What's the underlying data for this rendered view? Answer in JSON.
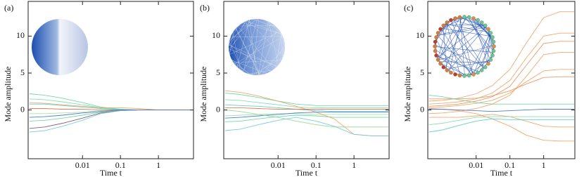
{
  "chart_data": [
    {
      "type": "line",
      "panel_label": "(a)",
      "ylabel": "Mode amplitude",
      "xlabel": "Time t",
      "xscale": "log",
      "xlim": [
        0.00037,
        8.4
      ],
      "ylim": [
        -6.6,
        14.7
      ],
      "xticks": [
        0.01,
        0.1,
        1
      ],
      "yticks": [
        0,
        5,
        10
      ],
      "x": [
        0.0004,
        0.001,
        0.003,
        0.01,
        0.03,
        0.1,
        0.3,
        1,
        3,
        8
      ],
      "series": [
        {
          "color": "#62d69e",
          "values": [
            2.2,
            2.0,
            1.6,
            1.0,
            0.4,
            0.1,
            0,
            0,
            0,
            0
          ]
        },
        {
          "color": "#7adcb0",
          "values": [
            1.5,
            1.4,
            1.1,
            0.7,
            0.3,
            0.05,
            0,
            0,
            0,
            0
          ]
        },
        {
          "color": "#57c9c0",
          "values": [
            0.8,
            0.8,
            0.6,
            0.4,
            0.2,
            0.03,
            0,
            0,
            0,
            0
          ]
        },
        {
          "color": "#9ee0a0",
          "values": [
            -0.5,
            -0.5,
            -0.4,
            -0.3,
            -0.1,
            0,
            0,
            0,
            0,
            0
          ]
        },
        {
          "color": "#62d69e",
          "values": [
            -1.5,
            -1.4,
            -1.1,
            -0.7,
            -0.3,
            -0.05,
            0,
            0,
            0,
            0
          ]
        },
        {
          "color": "#804a6a",
          "values": [
            -2.5,
            -2.3,
            -1.8,
            -1.1,
            -0.4,
            -0.1,
            0,
            0,
            0,
            0
          ]
        },
        {
          "color": "#f0a060",
          "values": [
            1.0,
            0.9,
            0.7,
            0.5,
            0.3,
            0.3,
            0.2,
            0,
            0,
            0
          ]
        },
        {
          "color": "#6ac8e0",
          "values": [
            -3.0,
            -2.8,
            -2.2,
            -1.4,
            -0.5,
            -0.1,
            0,
            0,
            0,
            0
          ]
        },
        {
          "color": "#e07040",
          "values": [
            0.2,
            0.2,
            0.1,
            0.1,
            0,
            0,
            0,
            0,
            0,
            0
          ]
        },
        {
          "color": "#3a70c8",
          "values": [
            -1.0,
            -0.9,
            -0.7,
            -0.4,
            -0.2,
            0,
            0,
            0,
            0,
            0
          ]
        }
      ]
    },
    {
      "type": "line",
      "panel_label": "(b)",
      "ylabel": "Mode amplitude",
      "xlabel": "Time t",
      "xscale": "log",
      "xlim": [
        0.00037,
        8.4
      ],
      "ylim": [
        -6.6,
        14.7
      ],
      "xticks": [
        0.01,
        0.1,
        1
      ],
      "yticks": [
        0,
        5,
        10
      ],
      "x": [
        0.0004,
        0.001,
        0.003,
        0.01,
        0.03,
        0.1,
        0.3,
        1,
        3,
        8
      ],
      "series": [
        {
          "color": "#62d69e",
          "values": [
            2.3,
            2.1,
            1.7,
            1.2,
            0.8,
            0.6,
            0.6,
            0.6,
            0.6,
            0.6
          ]
        },
        {
          "color": "#7adcb0",
          "values": [
            1.4,
            1.3,
            1.0,
            0.7,
            0.4,
            0.3,
            0.3,
            0.3,
            0.3,
            0.3
          ]
        },
        {
          "color": "#57c9c0",
          "values": [
            0.7,
            0.6,
            0.5,
            0.3,
            0.1,
            -0.1,
            -0.2,
            -0.2,
            -0.2,
            -0.2
          ]
        },
        {
          "color": "#9ee0a0",
          "values": [
            -0.8,
            -0.7,
            -0.6,
            -0.5,
            -0.5,
            -0.6,
            -0.6,
            -0.6,
            -0.6,
            -0.6
          ]
        },
        {
          "color": "#62d69e",
          "values": [
            -1.6,
            -1.5,
            -1.2,
            -0.9,
            -0.7,
            -0.8,
            -1.0,
            -1.0,
            -1.0,
            -1.0
          ]
        },
        {
          "color": "#f0a060",
          "values": [
            2.6,
            2.4,
            1.9,
            1.2,
            0.5,
            -0.3,
            -1.2,
            -3.3,
            -3.5,
            -3.5
          ]
        },
        {
          "color": "#6ac8e0",
          "values": [
            -2.8,
            -2.6,
            -2.0,
            -1.4,
            -1.0,
            -1.5,
            -2.2,
            -3.3,
            -3.5,
            -3.5
          ]
        },
        {
          "color": "#e07040",
          "values": [
            0.3,
            0.3,
            0.2,
            0.1,
            0.1,
            0.1,
            0.1,
            0.1,
            0.1,
            0.1
          ]
        },
        {
          "color": "#3a70c8",
          "values": [
            -1.1,
            -1.0,
            -0.8,
            -0.6,
            -0.4,
            -0.3,
            -0.3,
            -0.3,
            -0.3,
            -0.3
          ]
        },
        {
          "color": "#8fd48a",
          "values": [
            0.0,
            -0.2,
            -0.6,
            -1.0,
            -1.5,
            -2.0,
            -2.3,
            -2.3,
            -2.3,
            -2.3
          ]
        }
      ]
    },
    {
      "type": "line",
      "panel_label": "(c)",
      "ylabel": "Mode amplitude",
      "xlabel": "Time t",
      "xscale": "log",
      "xlim": [
        0.00037,
        8.4
      ],
      "ylim": [
        -6.6,
        14.7
      ],
      "xticks": [
        0.01,
        0.1,
        1
      ],
      "yticks": [
        0,
        5,
        10
      ],
      "x": [
        0.0004,
        0.001,
        0.003,
        0.01,
        0.03,
        0.1,
        0.3,
        1,
        3,
        8
      ],
      "series": [
        {
          "color": "#f0a060",
          "values": [
            1.2,
            1.3,
            1.6,
            2.2,
            3.3,
            5.5,
            9.0,
            12.5,
            13.3,
            13.3
          ]
        },
        {
          "color": "#f0a060",
          "values": [
            0.8,
            0.9,
            1.1,
            1.5,
            2.3,
            4.0,
            7.0,
            10.0,
            10.4,
            10.4
          ]
        },
        {
          "color": "#e8905a",
          "values": [
            0.5,
            0.6,
            0.8,
            1.2,
            1.8,
            3.2,
            6.0,
            9.0,
            9.3,
            9.3
          ]
        },
        {
          "color": "#f0a060",
          "values": [
            -0.5,
            -0.4,
            -0.2,
            0.2,
            0.8,
            2.0,
            4.5,
            7.5,
            7.8,
            7.8
          ]
        },
        {
          "color": "#f0a060",
          "values": [
            0.3,
            0.4,
            0.6,
            0.9,
            1.3,
            2.3,
            3.8,
            5.3,
            5.5,
            5.5
          ]
        },
        {
          "color": "#e8905a",
          "values": [
            1.5,
            1.5,
            1.5,
            1.6,
            1.9,
            2.6,
            3.5,
            4.4,
            4.5,
            4.5
          ]
        },
        {
          "color": "#f0a060",
          "values": [
            -1.0,
            -1.0,
            -1.0,
            -0.8,
            -0.6,
            -0.9,
            -1.5,
            -2.2,
            -2.3,
            -2.3
          ]
        },
        {
          "color": "#f0a060",
          "values": [
            0.2,
            0.1,
            -0.1,
            -0.5,
            -1.2,
            -2.2,
            -3.4,
            -4.1,
            -4.2,
            -4.2
          ]
        },
        {
          "color": "#62d69e",
          "values": [
            2.0,
            1.8,
            1.4,
            1.0,
            0.8,
            0.8,
            0.8,
            0.8,
            0.8,
            0.8
          ]
        },
        {
          "color": "#7adcb0",
          "values": [
            -2.0,
            -1.8,
            -1.4,
            -1.0,
            -0.9,
            -0.9,
            -0.9,
            -0.9,
            -0.9,
            -0.9
          ]
        },
        {
          "color": "#57c9c0",
          "values": [
            -3.0,
            -2.7,
            -2.1,
            -1.5,
            -1.2,
            -1.3,
            -1.3,
            -1.3,
            -1.3,
            -1.3
          ]
        },
        {
          "color": "#3a70c8",
          "values": [
            0.1,
            0.1,
            0.0,
            -0.1,
            -0.2,
            -0.1,
            0.0,
            0.1,
            0.1,
            0.1
          ]
        }
      ]
    }
  ]
}
